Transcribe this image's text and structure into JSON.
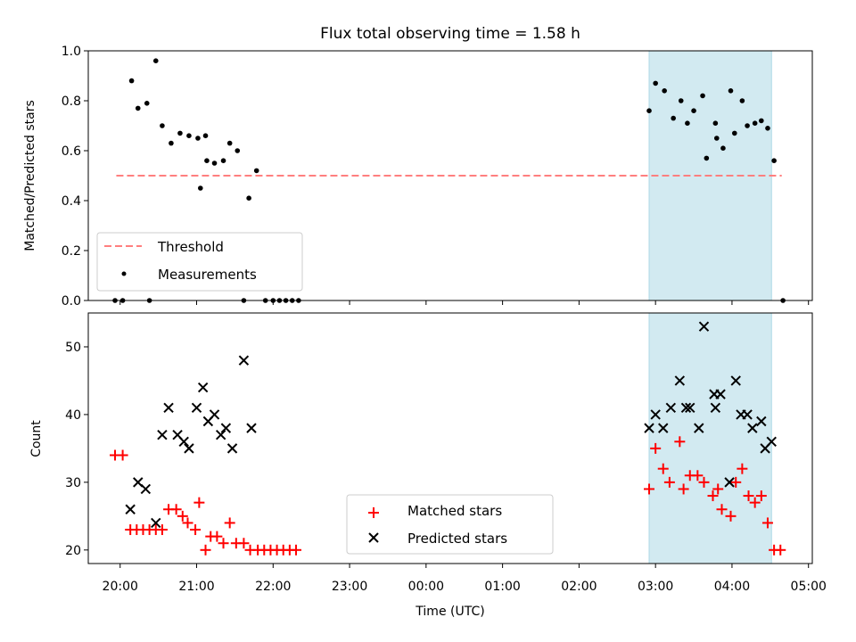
{
  "chart_data": [
    {
      "type": "scatter",
      "title": "Flux total observing time = 1.58 h",
      "ylabel": "Matched/Predicted stars",
      "xlabel": "",
      "ylim": [
        0,
        1.0
      ],
      "xlim": [
        "19:35",
        "05:03"
      ],
      "yticks": [
        "0.0",
        "0.2",
        "0.4",
        "0.6",
        "0.8",
        "1.0"
      ],
      "shaded_region": {
        "start": "02:55",
        "end": "04:31",
        "color": "#add8e6"
      },
      "threshold": {
        "name": "Threshold",
        "value": 0.5,
        "x_start": "19:57",
        "x_end": "04:39",
        "color": "#ff7f7f"
      },
      "series": [
        {
          "name": "Measurements",
          "color": "#000000",
          "points": [
            [
              "19:56",
              0.0
            ],
            [
              "20:02",
              0.0
            ],
            [
              "20:09",
              0.88
            ],
            [
              "20:14",
              0.77
            ],
            [
              "20:21",
              0.79
            ],
            [
              "20:23",
              0.0
            ],
            [
              "20:28",
              0.96
            ],
            [
              "20:33",
              0.7
            ],
            [
              "20:40",
              0.63
            ],
            [
              "20:47",
              0.67
            ],
            [
              "20:54",
              0.66
            ],
            [
              "21:01",
              0.65
            ],
            [
              "21:07",
              0.66
            ],
            [
              "21:03",
              0.45
            ],
            [
              "21:08",
              0.56
            ],
            [
              "21:14",
              0.55
            ],
            [
              "21:21",
              0.56
            ],
            [
              "21:26",
              0.63
            ],
            [
              "21:32",
              0.6
            ],
            [
              "21:37",
              0.0
            ],
            [
              "21:41",
              0.41
            ],
            [
              "21:47",
              0.52
            ],
            [
              "21:54",
              0.0
            ],
            [
              "22:00",
              0.0
            ],
            [
              "22:05",
              0.0
            ],
            [
              "22:10",
              0.0
            ],
            [
              "22:15",
              0.0
            ],
            [
              "22:20",
              0.0
            ],
            [
              "02:55",
              0.76
            ],
            [
              "03:00",
              0.87
            ],
            [
              "03:07",
              0.84
            ],
            [
              "03:14",
              0.73
            ],
            [
              "03:20",
              0.8
            ],
            [
              "03:25",
              0.71
            ],
            [
              "03:30",
              0.76
            ],
            [
              "03:37",
              0.82
            ],
            [
              "03:40",
              0.57
            ],
            [
              "03:47",
              0.71
            ],
            [
              "03:48",
              0.65
            ],
            [
              "03:53",
              0.61
            ],
            [
              "03:59",
              0.84
            ],
            [
              "04:02",
              0.67
            ],
            [
              "04:08",
              0.8
            ],
            [
              "04:12",
              0.7
            ],
            [
              "04:18",
              0.71
            ],
            [
              "04:23",
              0.72
            ],
            [
              "04:28",
              0.69
            ],
            [
              "04:33",
              0.56
            ],
            [
              "04:40",
              0.0
            ]
          ]
        }
      ],
      "legend": {
        "position": "lower-left",
        "entries": [
          "Threshold",
          "Measurements"
        ]
      }
    },
    {
      "type": "scatter",
      "title": "",
      "ylabel": "Count",
      "xlabel": "Time (UTC)",
      "ylim": [
        18,
        55
      ],
      "xlim": [
        "19:35",
        "05:03"
      ],
      "yticks": [
        "20",
        "30",
        "40",
        "50"
      ],
      "xticks": [
        "20:00",
        "21:00",
        "22:00",
        "23:00",
        "00:00",
        "01:00",
        "02:00",
        "03:00",
        "04:00",
        "05:00"
      ],
      "shaded_region": {
        "start": "02:55",
        "end": "04:31",
        "color": "#add8e6"
      },
      "series": [
        {
          "name": "Matched stars",
          "color": "#ff0000",
          "marker": "plus",
          "points": [
            [
              "19:56",
              34
            ],
            [
              "20:02",
              34
            ],
            [
              "20:08",
              23
            ],
            [
              "20:13",
              23
            ],
            [
              "20:18",
              23
            ],
            [
              "20:23",
              23
            ],
            [
              "20:28",
              23
            ],
            [
              "20:33",
              23
            ],
            [
              "20:38",
              26
            ],
            [
              "20:44",
              26
            ],
            [
              "20:49",
              25
            ],
            [
              "20:53",
              24
            ],
            [
              "20:59",
              23
            ],
            [
              "21:02",
              27
            ],
            [
              "21:07",
              20
            ],
            [
              "21:11",
              22
            ],
            [
              "21:16",
              22
            ],
            [
              "21:21",
              21
            ],
            [
              "21:26",
              24
            ],
            [
              "21:31",
              21
            ],
            [
              "21:37",
              21
            ],
            [
              "21:42",
              20
            ],
            [
              "21:48",
              20
            ],
            [
              "21:53",
              20
            ],
            [
              "21:58",
              20
            ],
            [
              "22:03",
              20
            ],
            [
              "22:08",
              20
            ],
            [
              "22:13",
              20
            ],
            [
              "22:18",
              20
            ],
            [
              "02:55",
              29
            ],
            [
              "03:00",
              35
            ],
            [
              "03:06",
              32
            ],
            [
              "03:11",
              30
            ],
            [
              "03:19",
              36
            ],
            [
              "03:22",
              29
            ],
            [
              "03:27",
              31
            ],
            [
              "03:33",
              31
            ],
            [
              "03:38",
              30
            ],
            [
              "03:45",
              28
            ],
            [
              "03:49",
              29
            ],
            [
              "03:52",
              26
            ],
            [
              "03:59",
              25
            ],
            [
              "04:03",
              30
            ],
            [
              "04:08",
              32
            ],
            [
              "04:13",
              28
            ],
            [
              "04:18",
              27
            ],
            [
              "04:23",
              28
            ],
            [
              "04:28",
              24
            ],
            [
              "04:33",
              20
            ],
            [
              "04:38",
              20
            ]
          ]
        },
        {
          "name": "Predicted stars",
          "color": "#000000",
          "marker": "x",
          "points": [
            [
              "20:08",
              26
            ],
            [
              "20:14",
              30
            ],
            [
              "20:20",
              29
            ],
            [
              "20:28",
              24
            ],
            [
              "20:33",
              37
            ],
            [
              "20:38",
              41
            ],
            [
              "20:45",
              37
            ],
            [
              "20:50",
              36
            ],
            [
              "20:54",
              35
            ],
            [
              "21:00",
              41
            ],
            [
              "21:05",
              44
            ],
            [
              "21:09",
              39
            ],
            [
              "21:14",
              40
            ],
            [
              "21:19",
              37
            ],
            [
              "21:23",
              38
            ],
            [
              "21:28",
              35
            ],
            [
              "21:37",
              48
            ],
            [
              "21:43",
              38
            ],
            [
              "02:55",
              38
            ],
            [
              "03:00",
              40
            ],
            [
              "03:06",
              38
            ],
            [
              "03:12",
              41
            ],
            [
              "03:19",
              45
            ],
            [
              "03:24",
              41
            ],
            [
              "03:27",
              41
            ],
            [
              "03:34",
              38
            ],
            [
              "03:38",
              53
            ],
            [
              "03:46",
              43
            ],
            [
              "03:47",
              41
            ],
            [
              "03:51",
              43
            ],
            [
              "03:58",
              30
            ],
            [
              "04:03",
              45
            ],
            [
              "04:07",
              40
            ],
            [
              "04:12",
              40
            ],
            [
              "04:16",
              38
            ],
            [
              "04:23",
              39
            ],
            [
              "04:26",
              35
            ],
            [
              "04:31",
              36
            ]
          ]
        }
      ],
      "legend": {
        "position": "lower-center",
        "entries": [
          "Matched stars",
          "Predicted stars"
        ]
      }
    }
  ]
}
